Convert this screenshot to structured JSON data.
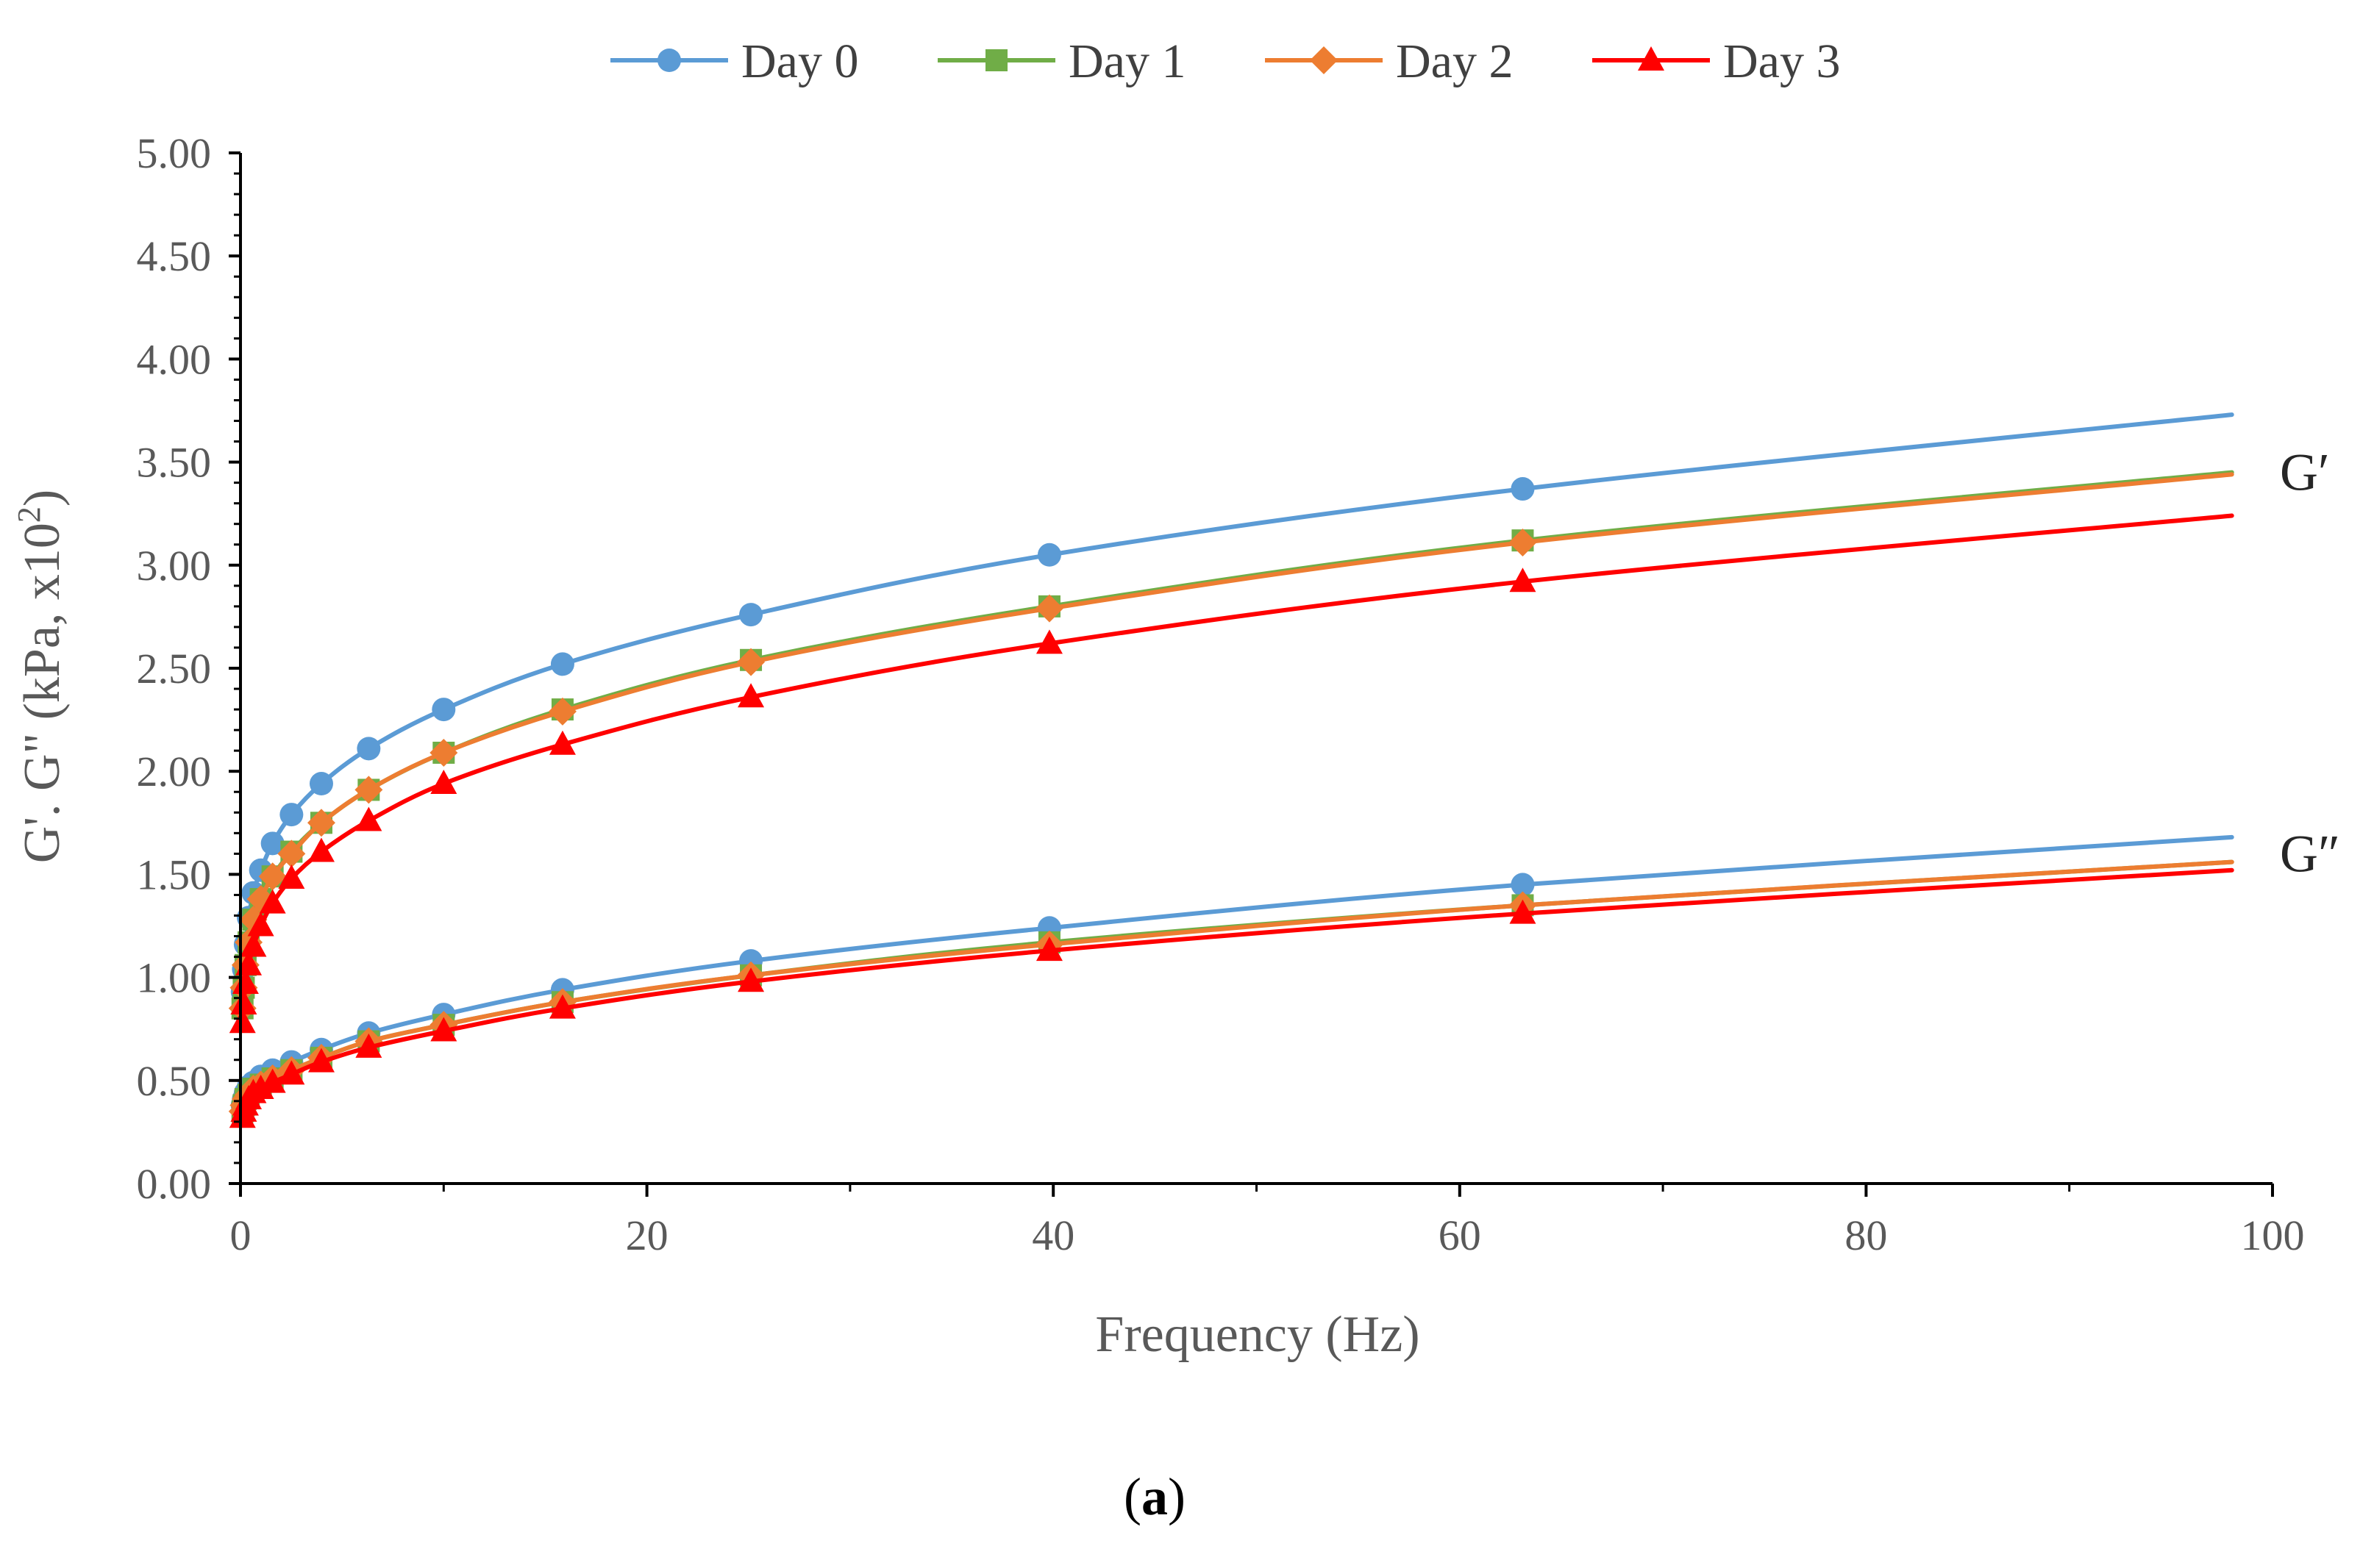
{
  "chart_data": {
    "type": "line",
    "xlabel": "Frequency (Hz)",
    "ylabel": "G'. G\" (kPa, x10",
    "ylabel_sup": "2",
    "ylabel_close": ")",
    "xlim": [
      0,
      100
    ],
    "ylim": [
      0,
      5
    ],
    "x_ticks": [
      "0",
      "20",
      "40",
      "60",
      "80",
      "100"
    ],
    "y_ticks": [
      "0.00",
      "0.50",
      "1.00",
      "1.50",
      "2.00",
      "2.50",
      "3.00",
      "3.50",
      "4.00",
      "4.50",
      "5.00"
    ],
    "legend_position": "top",
    "x": [
      0.1,
      0.16,
      0.25,
      0.4,
      0.63,
      1.0,
      1.58,
      2.51,
      3.98,
      6.31,
      10.0,
      15.85,
      25.12,
      39.81,
      63.1
    ],
    "line_end_x": 98,
    "series": [
      {
        "name": "Day 0",
        "curve": "G'",
        "color": "#5B9BD5",
        "marker": "circle",
        "values": [
          0.93,
          1.04,
          1.16,
          1.29,
          1.41,
          1.52,
          1.65,
          1.79,
          1.94,
          2.11,
          2.3,
          2.52,
          2.76,
          3.05,
          3.37
        ],
        "end_value": 3.73
      },
      {
        "name": "Day 1",
        "curve": "G'",
        "color": "#70AD47",
        "marker": "square",
        "values": [
          0.85,
          0.95,
          1.06,
          1.17,
          1.28,
          1.38,
          1.49,
          1.61,
          1.75,
          1.91,
          2.09,
          2.3,
          2.54,
          2.8,
          3.12
        ],
        "end_value": 3.45
      },
      {
        "name": "Day 2",
        "curve": "G'",
        "color": "#ED7D31",
        "marker": "diamond",
        "values": [
          0.85,
          0.95,
          1.06,
          1.17,
          1.28,
          1.38,
          1.49,
          1.6,
          1.75,
          1.91,
          2.09,
          2.29,
          2.53,
          2.79,
          3.11
        ],
        "end_value": 3.44
      },
      {
        "name": "Day 3",
        "curve": "G'",
        "color": "#FF0000",
        "marker": "triangle",
        "values": [
          0.78,
          0.87,
          0.97,
          1.06,
          1.15,
          1.25,
          1.36,
          1.48,
          1.61,
          1.76,
          1.94,
          2.13,
          2.36,
          2.62,
          2.92
        ],
        "end_value": 3.24
      },
      {
        "name": "Day 0",
        "curve": "G″",
        "color": "#5B9BD5",
        "marker": "circle",
        "values": [
          0.38,
          0.41,
          0.44,
          0.47,
          0.49,
          0.52,
          0.55,
          0.59,
          0.65,
          0.73,
          0.82,
          0.94,
          1.08,
          1.24,
          1.45
        ],
        "end_value": 1.68
      },
      {
        "name": "Day 1",
        "curve": "G″",
        "color": "#70AD47",
        "marker": "square",
        "values": [
          0.35,
          0.38,
          0.41,
          0.43,
          0.46,
          0.48,
          0.51,
          0.55,
          0.61,
          0.69,
          0.77,
          0.88,
          1.01,
          1.17,
          1.35
        ],
        "end_value": 1.56
      },
      {
        "name": "Day 2",
        "curve": "G″",
        "color": "#ED7D31",
        "marker": "diamond",
        "values": [
          0.35,
          0.38,
          0.41,
          0.43,
          0.46,
          0.48,
          0.51,
          0.55,
          0.61,
          0.69,
          0.77,
          0.88,
          1.01,
          1.16,
          1.35
        ],
        "end_value": 1.56
      },
      {
        "name": "Day 3",
        "curve": "G″",
        "color": "#FF0000",
        "marker": "triangle",
        "values": [
          0.32,
          0.35,
          0.38,
          0.41,
          0.44,
          0.46,
          0.49,
          0.53,
          0.59,
          0.66,
          0.74,
          0.85,
          0.98,
          1.13,
          1.31
        ],
        "end_value": 1.52
      }
    ],
    "annotations": [
      {
        "text": "G′",
        "anchor_value": 3.45
      },
      {
        "text": "G″",
        "anchor_value": 1.6
      }
    ]
  },
  "caption": {
    "open": "(",
    "label": "a",
    "close": ")"
  }
}
